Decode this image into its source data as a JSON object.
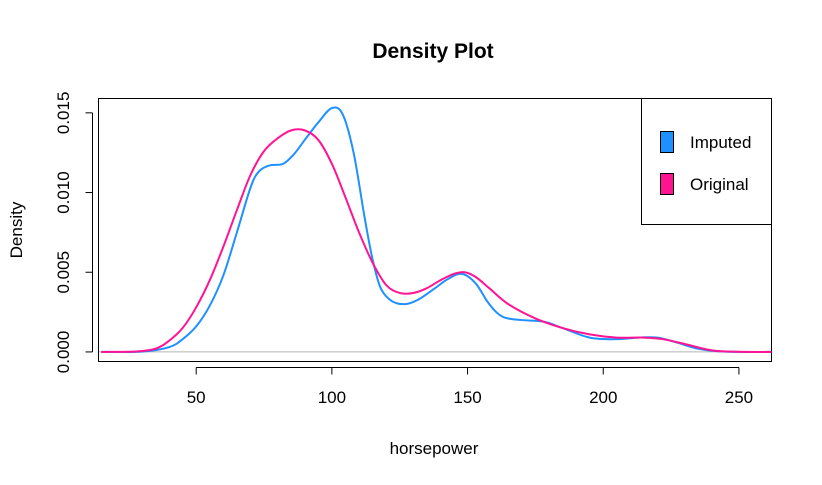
{
  "chart_data": {
    "type": "line",
    "title": "Density Plot",
    "xlabel": "horsepower",
    "ylabel": "Density",
    "xlim": [
      14,
      262
    ],
    "ylim": [
      -0.0006,
      0.0159
    ],
    "x_ticks": [
      50,
      100,
      150,
      200,
      250
    ],
    "x_tick_labels": [
      "50",
      "100",
      "150",
      "200",
      "250"
    ],
    "y_ticks": [
      0.0,
      0.005,
      0.01,
      0.015
    ],
    "y_tick_labels": [
      "0.000",
      "0.005",
      "0.010",
      "0.015"
    ],
    "baseline": 0,
    "grid": false,
    "legend_position": "top-right",
    "series": [
      {
        "name": "Imputed",
        "color": "#1E90FF",
        "points": [
          [
            15,
            0
          ],
          [
            30,
            2e-05
          ],
          [
            40,
            0.0003
          ],
          [
            45,
            0.0008
          ],
          [
            50,
            0.0016
          ],
          [
            55,
            0.0029
          ],
          [
            60,
            0.0048
          ],
          [
            65,
            0.0075
          ],
          [
            70,
            0.0103
          ],
          [
            73,
            0.0113
          ],
          [
            77,
            0.0117
          ],
          [
            82,
            0.0118
          ],
          [
            86,
            0.0124
          ],
          [
            90,
            0.0133
          ],
          [
            95,
            0.0144
          ],
          [
            100,
            0.0153
          ],
          [
            104,
            0.0149
          ],
          [
            108,
            0.0125
          ],
          [
            112,
            0.0085
          ],
          [
            115,
            0.0058
          ],
          [
            118,
            0.004
          ],
          [
            122,
            0.0032
          ],
          [
            127,
            0.003
          ],
          [
            132,
            0.0033
          ],
          [
            138,
            0.004
          ],
          [
            143,
            0.0046
          ],
          [
            148,
            0.0049
          ],
          [
            153,
            0.0043
          ],
          [
            158,
            0.003
          ],
          [
            163,
            0.0022
          ],
          [
            170,
            0.002
          ],
          [
            178,
            0.0019
          ],
          [
            185,
            0.0015
          ],
          [
            195,
            0.0009
          ],
          [
            205,
            0.0008
          ],
          [
            213,
            0.0009
          ],
          [
            220,
            0.0009
          ],
          [
            227,
            0.0006
          ],
          [
            235,
            0.0002
          ],
          [
            245,
            2e-05
          ],
          [
            262,
            0
          ]
        ]
      },
      {
        "name": "Original",
        "color": "#FF1493",
        "points": [
          [
            15,
            0
          ],
          [
            28,
            3e-05
          ],
          [
            35,
            0.0002
          ],
          [
            40,
            0.0007
          ],
          [
            45,
            0.0015
          ],
          [
            50,
            0.0028
          ],
          [
            55,
            0.0045
          ],
          [
            60,
            0.0066
          ],
          [
            65,
            0.0089
          ],
          [
            70,
            0.0111
          ],
          [
            75,
            0.0126
          ],
          [
            80,
            0.0134
          ],
          [
            85,
            0.0139
          ],
          [
            90,
            0.0139
          ],
          [
            95,
            0.0133
          ],
          [
            100,
            0.0118
          ],
          [
            105,
            0.0097
          ],
          [
            110,
            0.0075
          ],
          [
            115,
            0.0056
          ],
          [
            120,
            0.0042
          ],
          [
            125,
            0.0037
          ],
          [
            130,
            0.0037
          ],
          [
            135,
            0.004
          ],
          [
            140,
            0.0045
          ],
          [
            145,
            0.0049
          ],
          [
            149,
            0.005
          ],
          [
            153,
            0.0047
          ],
          [
            158,
            0.004
          ],
          [
            165,
            0.003
          ],
          [
            175,
            0.0021
          ],
          [
            185,
            0.0015
          ],
          [
            195,
            0.0011
          ],
          [
            205,
            0.0009
          ],
          [
            215,
            0.0009
          ],
          [
            222,
            0.0008
          ],
          [
            230,
            0.0005
          ],
          [
            240,
            0.0001
          ],
          [
            250,
            1e-05
          ],
          [
            262,
            0
          ]
        ]
      }
    ]
  }
}
